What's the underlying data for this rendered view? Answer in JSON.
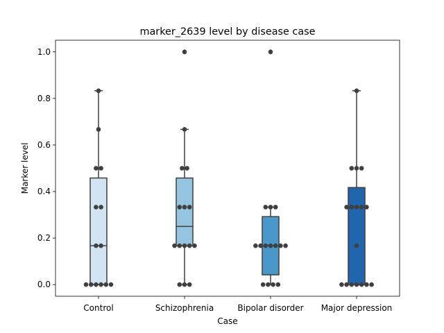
{
  "chart_data": {
    "type": "box",
    "title": "marker_2639 level by disease case",
    "xlabel": "Case",
    "ylabel": "Marker level",
    "ylim": [
      -0.05,
      1.05
    ],
    "yticks": [
      0.0,
      0.2,
      0.4,
      0.6,
      0.8,
      1.0
    ],
    "ytick_labels": [
      "0.0",
      "0.2",
      "0.4",
      "0.6",
      "0.8",
      "1.0"
    ],
    "grid": false,
    "categories": [
      "Control",
      "Schizophrenia",
      "Bipolar disorder",
      "Major depression"
    ],
    "colors": [
      "#d2e3f3",
      "#94c4df",
      "#4a98c9",
      "#2166ac"
    ],
    "boxes": [
      {
        "q1": 0.0,
        "median": 0.167,
        "q3": 0.458,
        "whisker_low": 0.0,
        "whisker_high": 0.833,
        "outliers": []
      },
      {
        "q1": 0.167,
        "median": 0.25,
        "q3": 0.458,
        "whisker_low": 0.0,
        "whisker_high": 0.667,
        "outliers": [
          1.0
        ]
      },
      {
        "q1": 0.042,
        "median": 0.167,
        "q3": 0.292,
        "whisker_low": 0.0,
        "whisker_high": 0.333,
        "outliers": [
          1.0
        ]
      },
      {
        "q1": 0.0,
        "median": 0.333,
        "q3": 0.417,
        "whisker_low": 0.0,
        "whisker_high": 0.833,
        "outliers": []
      }
    ],
    "points": [
      [
        0,
        0,
        0,
        0,
        0,
        0,
        0.167,
        0.167,
        0.333,
        0.333,
        0.5,
        0.5,
        0.667,
        0.833
      ],
      [
        0,
        0,
        0,
        0.167,
        0.167,
        0.167,
        0.167,
        0.167,
        0.333,
        0.333,
        0.333,
        0.5,
        0.5,
        0.667,
        1.0
      ],
      [
        0,
        0,
        0,
        0,
        0.167,
        0.167,
        0.167,
        0.167,
        0.167,
        0.167,
        0.167,
        0.333,
        0.333,
        0.333,
        1.0
      ],
      [
        0,
        0,
        0,
        0,
        0,
        0,
        0,
        0.167,
        0.333,
        0.333,
        0.333,
        0.333,
        0.333,
        0.5,
        0.5,
        0.5,
        0.833
      ]
    ]
  }
}
